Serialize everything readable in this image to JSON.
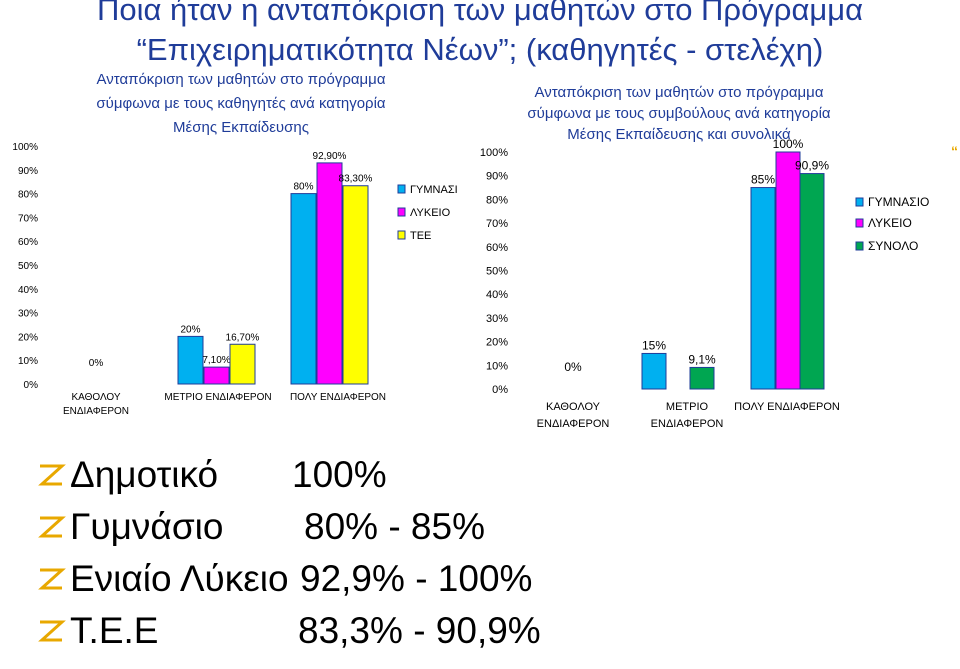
{
  "slide": {
    "title_line1": "Ποια ήταν η ανταπόκριση των μαθητών  στο Πρόγραμμα",
    "title_line2": "“Επιχειρηματικότητα Νέων”; (καθηγητές - στελέχη)",
    "title_color": "#1f3c99",
    "edge_marker": "“"
  },
  "chart_data": [
    {
      "type": "bar",
      "title": "Ανταπόκριση των μαθητών στο πρόγραμμα σύμφωνα με τους καθηγητές ανά κατηγορία Μέσης Εκπαίδευσης",
      "title_lines": [
        "Ανταπόκριση των μαθητών στο πρόγραμμα",
        "σύμφωνα με τους καθηγητές ανά κατηγορία",
        "Μέσης Εκπαίδευσης"
      ],
      "title_color": "#1f3c99",
      "categories": [
        "ΚΑΘΟΛΟΥ ΕΝΔΙΑΦΕΡΟΝ",
        "ΜΕΤΡΙΟ ΕΝΔΙΑΦΕΡΟΝ",
        "ΠΟΛΥ ΕΝΔΙΑΦΕΡΟΝ"
      ],
      "category_lines": [
        [
          "ΚΑΘΟΛΟΥ",
          "ΕΝΔΙΑΦΕΡΟΝ"
        ],
        [
          "ΜΕΤΡΙΟ ΕΝΔΙΑΦΕΡΟΝ"
        ],
        [
          "ΠΟΛΥ ΕΝΔΙΑΦΕΡΟΝ"
        ]
      ],
      "series": [
        {
          "name": "ΓΥΜΝΑΣΙΟ",
          "color": "#00b0f0",
          "values": [
            0,
            20,
            80
          ],
          "labels": [
            "0%",
            "20%",
            "80%"
          ]
        },
        {
          "name": "ΛΥΚΕΙΟ",
          "color": "#ff00ff",
          "values": [
            0,
            7.1,
            92.9
          ],
          "labels": [
            "",
            "7,10%",
            "92,90%"
          ]
        },
        {
          "name": "ΤΕΕ",
          "color": "#ffff00",
          "values": [
            0,
            16.7,
            83.3
          ],
          "labels": [
            "",
            "16,70%",
            "83,30%"
          ]
        }
      ],
      "legend_entries": [
        "ΓΥΜΝΑΣΙΟ",
        "ΛΥΚΕΙΟ",
        "ΤΕΕ"
      ],
      "yticks": [
        "0%",
        "10%",
        "20%",
        "30%",
        "40%",
        "50%",
        "60%",
        "70%",
        "80%",
        "90%",
        "100%"
      ],
      "ylim": [
        0,
        100
      ],
      "grid": false,
      "legend_position": "right"
    },
    {
      "type": "bar",
      "title": "Ανταπόκριση των μαθητών στο πρόγραμμα σύμφωνα με τους συμβούλους ανά κατηγορία Μέσης Εκπαίδευσης και συνολικά",
      "title_lines": [
        "Ανταπόκριση των μαθητών στο πρόγραμμα",
        "σύμφωνα με τους συμβούλους ανά κατηγορία",
        "Μέσης Εκπαίδευσης και συνολικά"
      ],
      "title_color": "#1f3c99",
      "categories": [
        "ΚΑΘΟΛΟΥ ΕΝΔΙΑΦΕΡΟΝ",
        "ΜΕΤΡΙΟ ΕΝΔΙΑΦΕΡΟΝ",
        "ΠΟΛΥ ΕΝΔΙΑΦΕΡΟΝ"
      ],
      "category_lines": [
        [
          "ΚΑΘΟΛΟΥ",
          "ΕΝΔΙΑΦΕΡΟΝ"
        ],
        [
          "ΜΕΤΡΙΟ",
          "ΕΝΔΙΑΦΕΡΟΝ"
        ],
        [
          "ΠΟΛΥ ΕΝΔΙΑΦΕΡΟΝ"
        ]
      ],
      "series": [
        {
          "name": "ΓΥΜΝΑΣΙΟ",
          "color": "#00b0f0",
          "values": [
            0,
            15,
            85
          ],
          "labels": [
            "0%",
            "15%",
            "85%"
          ]
        },
        {
          "name": "ΛΥΚΕΙΟ",
          "color": "#ff00ff",
          "values": [
            0,
            0,
            100
          ],
          "labels": [
            "",
            "",
            "100%"
          ]
        },
        {
          "name": "ΣΥΝΟΛΟ",
          "color": "#00a651",
          "values": [
            0,
            9.1,
            90.9
          ],
          "labels": [
            "",
            "9,1%",
            "90,9%"
          ]
        }
      ],
      "legend_entries": [
        "ΓΥΜΝΑΣΙΟ",
        "ΛΥΚΕΙΟ",
        "ΣΥΝΟΛΟ"
      ],
      "yticks": [
        "0%",
        "10%",
        "20%",
        "30%",
        "40%",
        "50%",
        "60%",
        "70%",
        "80%",
        "90%",
        "100%"
      ],
      "ylim": [
        0,
        100
      ],
      "grid": false,
      "legend_position": "right"
    }
  ],
  "summary": {
    "bullet_icon": "z-bullet-icon",
    "bullet_color": "#e8a800",
    "items": [
      {
        "label": "Δημοτικό",
        "value": "100%"
      },
      {
        "label": "Γυμνάσιο",
        "value": "80% - 85%"
      },
      {
        "label": "Ενιαίο Λύκειο",
        "value": "92,9% - 100%"
      },
      {
        "label": "Τ.Ε.Ε",
        "value": "83,3% - 90,9%"
      }
    ]
  }
}
